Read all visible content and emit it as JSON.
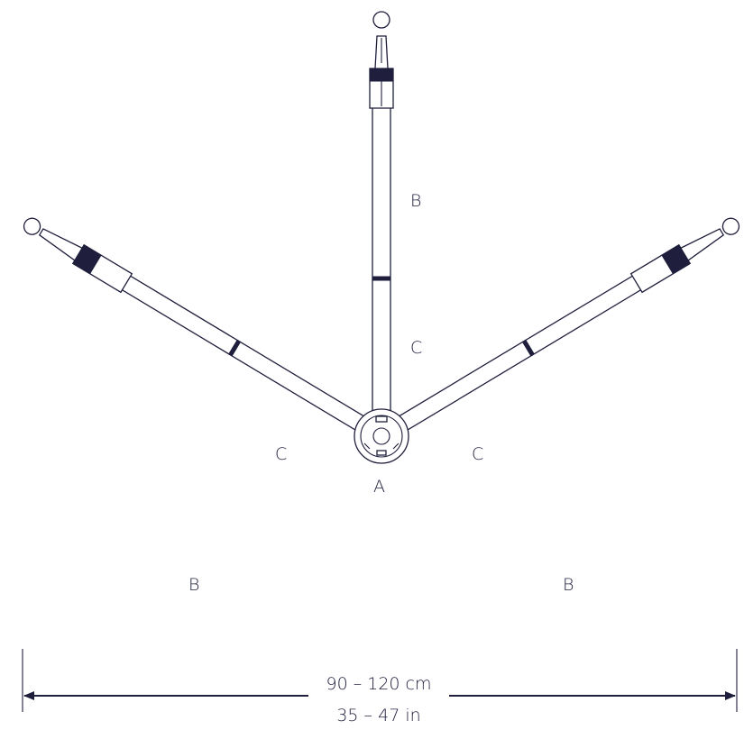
{
  "labels": {
    "hub": "A",
    "top_outer": "B",
    "top_inner": "C",
    "left_inner": "C",
    "right_inner": "C",
    "left_outer": "B",
    "right_outer": "B"
  },
  "dimension": {
    "metric": "90 – 120 cm",
    "imperial": "35 – 47 in"
  },
  "colors": {
    "line": "#1f1f3d",
    "background": "#ffffff"
  }
}
